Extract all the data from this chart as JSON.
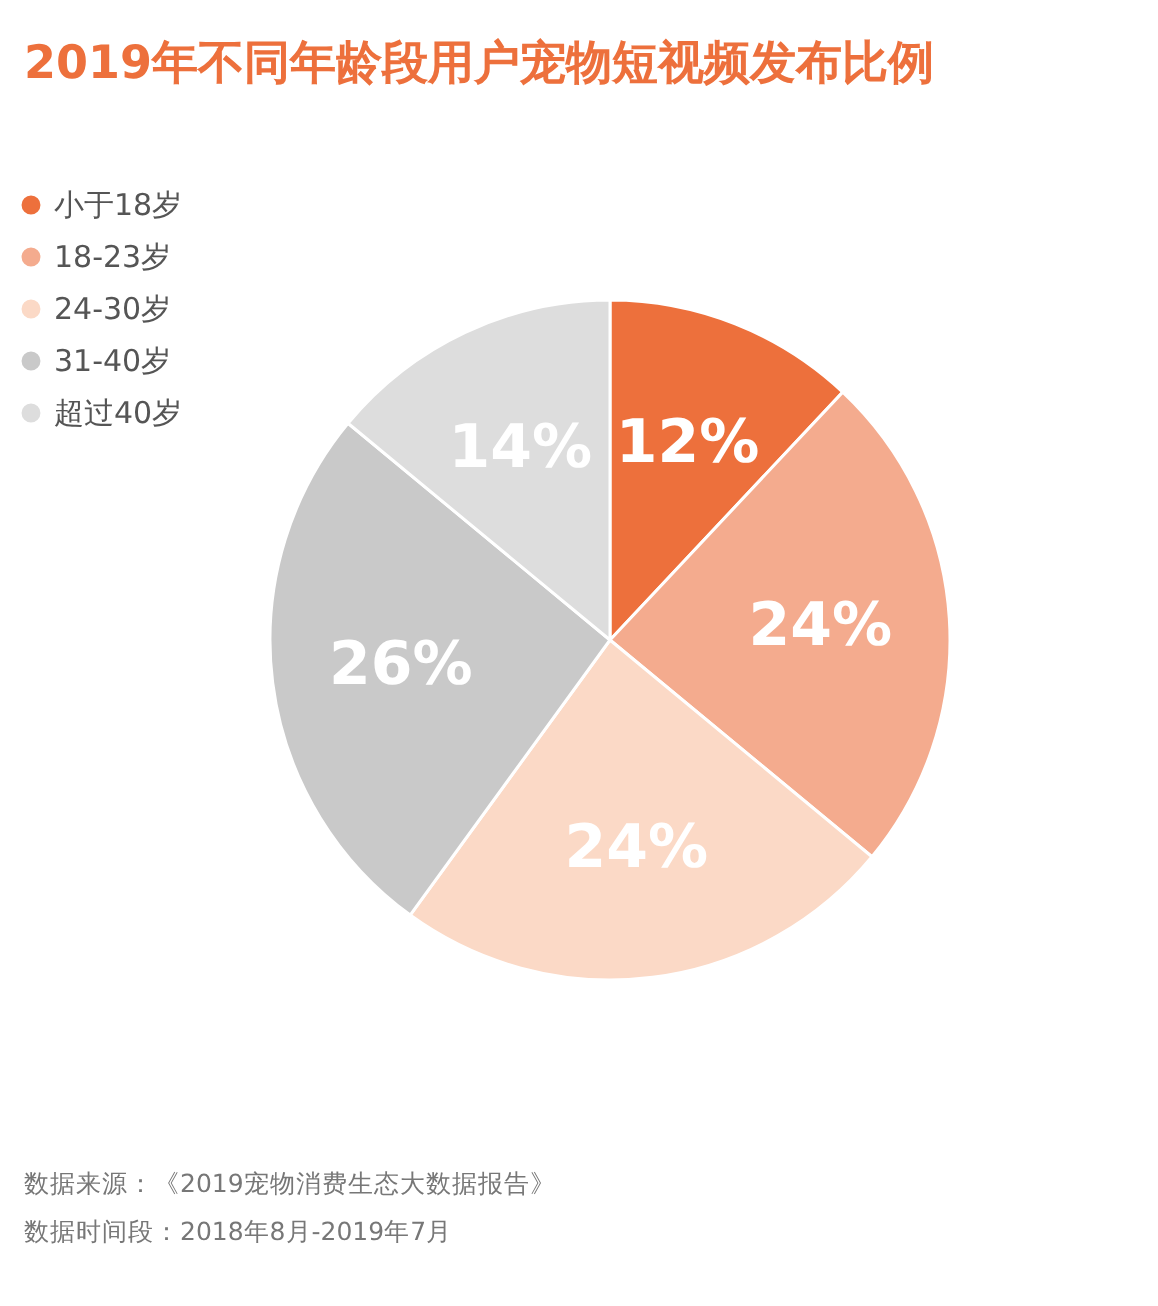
{
  "chart_data": {
    "type": "pie",
    "title": "2019年不同年龄段用户宠物短视频发布比例",
    "categories": [
      "小于18岁",
      "18-23岁",
      "24-30岁",
      "31-40岁",
      "超过40岁"
    ],
    "values": [
      12,
      24,
      24,
      26,
      14
    ],
    "colors": [
      "#ed703c",
      "#f4ab8e",
      "#fbd9c6",
      "#c9c9c9",
      "#dddddd"
    ],
    "value_labels": [
      "12%",
      "24%",
      "24%",
      "26%",
      "14%"
    ],
    "legend": "top left",
    "annotations": [
      "数据来源：《2019宠物消费生态大数据报告》",
      "数据时间段：2018年8月-2019年7月"
    ]
  }
}
